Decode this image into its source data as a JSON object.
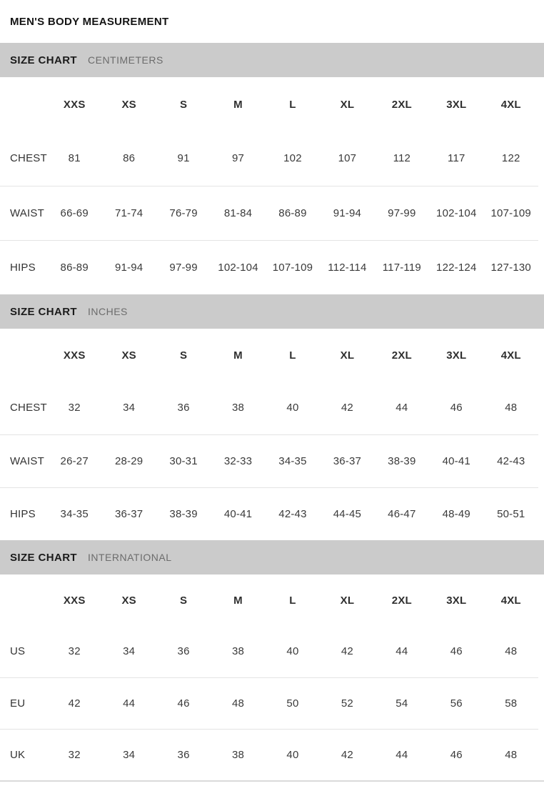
{
  "page_title": "MEN'S BODY MEASUREMENT",
  "colors": {
    "section_bar_bg": "#cbcbcb",
    "section_subtitle": "#6c6c6c",
    "row_separator": "#e4e4e4"
  },
  "sections": [
    {
      "title": "SIZE CHART",
      "subtitle": "CENTIMETERS",
      "columns": [
        "XXS",
        "XS",
        "S",
        "M",
        "L",
        "XL",
        "2XL",
        "3XL",
        "4XL"
      ],
      "rows": [
        {
          "label": "CHEST",
          "values": [
            "81",
            "86",
            "91",
            "97",
            "102",
            "107",
            "112",
            "117",
            "122"
          ]
        },
        {
          "label": "WAIST",
          "values": [
            "66-69",
            "71-74",
            "76-79",
            "81-84",
            "86-89",
            "91-94",
            "97-99",
            "102-104",
            "107-109"
          ]
        },
        {
          "label": "HIPS",
          "values": [
            "86-89",
            "91-94",
            "97-99",
            "102-104",
            "107-109",
            "112-114",
            "117-119",
            "122-124",
            "127-130"
          ]
        }
      ]
    },
    {
      "title": "SIZE CHART",
      "subtitle": "INCHES",
      "columns": [
        "XXS",
        "XS",
        "S",
        "M",
        "L",
        "XL",
        "2XL",
        "3XL",
        "4XL"
      ],
      "rows": [
        {
          "label": "CHEST",
          "values": [
            "32",
            "34",
            "36",
            "38",
            "40",
            "42",
            "44",
            "46",
            "48"
          ]
        },
        {
          "label": "WAIST",
          "values": [
            "26-27",
            "28-29",
            "30-31",
            "32-33",
            "34-35",
            "36-37",
            "38-39",
            "40-41",
            "42-43"
          ]
        },
        {
          "label": "HIPS",
          "values": [
            "34-35",
            "36-37",
            "38-39",
            "40-41",
            "42-43",
            "44-45",
            "46-47",
            "48-49",
            "50-51"
          ]
        }
      ]
    },
    {
      "title": "SIZE CHART",
      "subtitle": "INTERNATIONAL",
      "columns": [
        "XXS",
        "XS",
        "S",
        "M",
        "L",
        "XL",
        "2XL",
        "3XL",
        "4XL"
      ],
      "rows": [
        {
          "label": "US",
          "values": [
            "32",
            "34",
            "36",
            "38",
            "40",
            "42",
            "44",
            "46",
            "48"
          ]
        },
        {
          "label": "EU",
          "values": [
            "42",
            "44",
            "46",
            "48",
            "50",
            "52",
            "54",
            "56",
            "58"
          ]
        },
        {
          "label": "UK",
          "values": [
            "32",
            "34",
            "36",
            "38",
            "40",
            "42",
            "44",
            "46",
            "48"
          ]
        }
      ]
    }
  ]
}
